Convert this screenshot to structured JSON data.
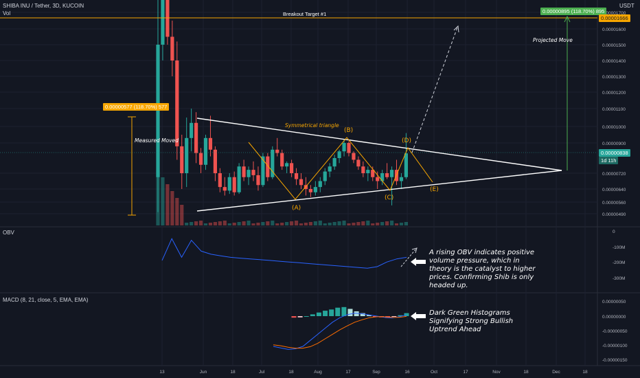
{
  "header": {
    "symbol": "SHIBA INU / Tether, 3D, KUCOIN",
    "vol_label": "Vol",
    "currency": "USDT"
  },
  "colors": {
    "background": "#131722",
    "bull": "#26a69a",
    "bear": "#ef5350",
    "target_line": "#f7a600",
    "triangle": "#ffffff",
    "obv_line": "#2962ff",
    "macd_line": "#2962ff",
    "signal_line": "#ff6d00",
    "hist_strong_green": "#26a69a",
    "hist_light_green": "#b2dfdb",
    "hist_red": "#ef5350",
    "hist_light_red": "#ffcdd2",
    "projection_arrow": "#4caf50"
  },
  "labels": {
    "breakout_target": "Breakout Target #1",
    "projected_move": "Projected Move",
    "measured_moved": "Measured Moved",
    "symmetrical_triangle": "Symmetrical triangle",
    "wave_b": "(B)",
    "wave_d": "(D)",
    "wave_a": "(A)",
    "wave_c": "(C)",
    "wave_e": "(E)",
    "measure_tag": "0.00000577 (118.70%) 577",
    "projection_tag": "0.00000895 (118.70%) 895",
    "target_price_tag": "0.00001666",
    "last_price_tag": "0.00000838",
    "countdown_tag": "1d 11h"
  },
  "obv_panel": {
    "title": "OBV",
    "annotation": [
      "A rising OBV indicates positive",
      "volume pressure, which in",
      "theory is the catalyst to higher",
      "prices. Confirming Shib is only",
      "headed up."
    ]
  },
  "macd_panel": {
    "title": "MACD (8, 21, close, 5, EMA, EMA)",
    "annotation": [
      "Dark Green Histograms",
      "Signifying Strong Bullish",
      "Uptrend Ahead"
    ]
  },
  "chart_data": [
    {
      "type": "candlestick",
      "title": "SHIBA INU / Tether, 3D, KUCOIN",
      "x_ticks": [
        "13",
        "Jun",
        "18",
        "Jul",
        "18",
        "Aug",
        "17",
        "Sep",
        "16",
        "Oct",
        "17",
        "Nov",
        "18",
        "Dec",
        "18"
      ],
      "y_ticks": [
        "0.00001700",
        "0.00001600",
        "0.00001500",
        "0.00001400",
        "0.00001300",
        "0.00001200",
        "0.00001100",
        "0.00001000",
        "0.00000900",
        "0.00000720",
        "0.00000640",
        "0.00000560",
        "0.00000490"
      ],
      "candles": [
        {
          "o": 7e-06,
          "h": 1.8e-05,
          "l": 5e-06,
          "c": 1.5e-05
        },
        {
          "o": 1.5e-05,
          "h": 1.8e-05,
          "l": 1.4e-05,
          "c": 1.8e-05
        },
        {
          "o": 1.8e-05,
          "h": 1.8e-05,
          "l": 1.5e-05,
          "c": 1.55e-05
        },
        {
          "o": 1.55e-05,
          "h": 1.65e-05,
          "l": 1.3e-05,
          "c": 1.4e-05
        },
        {
          "o": 1.4e-05,
          "h": 1.52e-05,
          "l": 8e-06,
          "c": 8.8e-06
        },
        {
          "o": 8.8e-06,
          "h": 9.5e-06,
          "l": 6.4e-06,
          "c": 7.2e-06
        },
        {
          "o": 7.2e-06,
          "h": 1.05e-05,
          "l": 6.5e-06,
          "c": 9.3e-06
        },
        {
          "o": 9.3e-06,
          "h": 1.1e-05,
          "l": 8.5e-06,
          "c": 1.02e-05
        },
        {
          "o": 1.02e-05,
          "h": 1.08e-05,
          "l": 7.8e-06,
          "c": 8.4e-06
        },
        {
          "o": 8.4e-06,
          "h": 8.7e-06,
          "l": 7.2e-06,
          "c": 7.7e-06
        },
        {
          "o": 7.7e-06,
          "h": 9.5e-06,
          "l": 7.4e-06,
          "c": 9.3e-06
        },
        {
          "o": 9.3e-06,
          "h": 1.06e-05,
          "l": 8.2e-06,
          "c": 8.6e-06
        },
        {
          "o": 8.6e-06,
          "h": 8.8e-06,
          "l": 6.8e-06,
          "c": 7.2e-06
        },
        {
          "o": 7.2e-06,
          "h": 7.5e-06,
          "l": 6.2e-06,
          "c": 6.5e-06
        },
        {
          "o": 6.5e-06,
          "h": 7e-06,
          "l": 6e-06,
          "c": 6.3e-06
        },
        {
          "o": 6.3e-06,
          "h": 7.2e-06,
          "l": 6.1e-06,
          "c": 7e-06
        },
        {
          "o": 7e-06,
          "h": 7.3e-06,
          "l": 6e-06,
          "c": 6.2e-06
        },
        {
          "o": 6.2e-06,
          "h": 7.8e-06,
          "l": 6.1e-06,
          "c": 7.6e-06
        },
        {
          "o": 7.6e-06,
          "h": 8e-06,
          "l": 6.8e-06,
          "c": 7e-06
        },
        {
          "o": 7e-06,
          "h": 7.6e-06,
          "l": 6.6e-06,
          "c": 7.4e-06
        },
        {
          "o": 7.4e-06,
          "h": 7.9e-06,
          "l": 6.8e-06,
          "c": 7.1e-06
        },
        {
          "o": 7.1e-06,
          "h": 7.6e-06,
          "l": 6.3e-06,
          "c": 6.6e-06
        },
        {
          "o": 6.6e-06,
          "h": 8.4e-06,
          "l": 6.5e-06,
          "c": 8.2e-06
        },
        {
          "o": 8.2e-06,
          "h": 8.4e-06,
          "l": 6.8e-06,
          "c": 7e-06
        },
        {
          "o": 7e-06,
          "h": 8.8e-06,
          "l": 6.9e-06,
          "c": 8.6e-06
        },
        {
          "o": 8.6e-06,
          "h": 9.3e-06,
          "l": 8.2e-06,
          "c": 8.4e-06
        },
        {
          "o": 8.4e-06,
          "h": 8.6e-06,
          "l": 7.4e-06,
          "c": 7.6e-06
        },
        {
          "o": 7.6e-06,
          "h": 7.9e-06,
          "l": 7.2e-06,
          "c": 7.8e-06
        },
        {
          "o": 7.8e-06,
          "h": 8e-06,
          "l": 7e-06,
          "c": 7.2e-06
        },
        {
          "o": 7.2e-06,
          "h": 7.5e-06,
          "l": 6.6e-06,
          "c": 6.9e-06
        },
        {
          "o": 6.9e-06,
          "h": 7.2e-06,
          "l": 6.4e-06,
          "c": 6.6e-06
        },
        {
          "o": 6.6e-06,
          "h": 7e-06,
          "l": 6e-06,
          "c": 6.4e-06
        },
        {
          "o": 6.4e-06,
          "h": 6.6e-06,
          "l": 5.9e-06,
          "c": 6.2e-06
        },
        {
          "o": 6.2e-06,
          "h": 6.8e-06,
          "l": 6e-06,
          "c": 6.5e-06
        },
        {
          "o": 6.5e-06,
          "h": 7e-06,
          "l": 6.2e-06,
          "c": 6.8e-06
        },
        {
          "o": 6.8e-06,
          "h": 7.5e-06,
          "l": 6.6e-06,
          "c": 7.3e-06
        },
        {
          "o": 7.3e-06,
          "h": 7.8e-06,
          "l": 7e-06,
          "c": 7.6e-06
        },
        {
          "o": 7.6e-06,
          "h": 8.3e-06,
          "l": 7.4e-06,
          "c": 8.1e-06
        },
        {
          "o": 8.1e-06,
          "h": 8.6e-06,
          "l": 7.8e-06,
          "c": 8.5e-06
        },
        {
          "o": 8.5e-06,
          "h": 9.2e-06,
          "l": 8.2e-06,
          "c": 9e-06
        },
        {
          "o": 9e-06,
          "h": 9.1e-06,
          "l": 8.2e-06,
          "c": 8.4e-06
        },
        {
          "o": 8.4e-06,
          "h": 8.5e-06,
          "l": 7.8e-06,
          "c": 8e-06
        },
        {
          "o": 8e-06,
          "h": 8.2e-06,
          "l": 7.4e-06,
          "c": 7.6e-06
        },
        {
          "o": 7.6e-06,
          "h": 7.9e-06,
          "l": 7e-06,
          "c": 7.2e-06
        },
        {
          "o": 7.2e-06,
          "h": 7.6e-06,
          "l": 6.8e-06,
          "c": 7.4e-06
        },
        {
          "o": 7.4e-06,
          "h": 7.6e-06,
          "l": 6.8e-06,
          "c": 7e-06
        },
        {
          "o": 7e-06,
          "h": 7.3e-06,
          "l": 6.4e-06,
          "c": 6.8e-06
        },
        {
          "o": 6.8e-06,
          "h": 7.4e-06,
          "l": 6.6e-06,
          "c": 7.2e-06
        },
        {
          "o": 7.2e-06,
          "h": 7.8e-06,
          "l": 6.9e-06,
          "c": 7e-06
        },
        {
          "o": 7e-06,
          "h": 7.6e-06,
          "l": 5.4e-06,
          "c": 7.4e-06
        },
        {
          "o": 7.4e-06,
          "h": 8e-06,
          "l": 6.6e-06,
          "c": 6.8e-06
        },
        {
          "o": 6.8e-06,
          "h": 7.2e-06,
          "l": 6.4e-06,
          "c": 7e-06
        },
        {
          "o": 7e-06,
          "h": 9.6e-06,
          "l": 6.9e-06,
          "c": 8.38e-06
        }
      ]
    },
    {
      "type": "line",
      "title": "OBV",
      "y_ticks": [
        "0",
        "-100M",
        "-200M",
        "-300M"
      ],
      "ylim": [
        -350000000,
        50000000
      ],
      "values": [
        -190000000,
        -50000000,
        -170000000,
        -60000000,
        -130000000,
        -150000000,
        -160000000,
        -170000000,
        -175000000,
        -180000000,
        -185000000,
        -190000000,
        -195000000,
        -200000000,
        -205000000,
        -210000000,
        -215000000,
        -220000000,
        -225000000,
        -230000000,
        -235000000,
        -240000000,
        -230000000,
        -200000000,
        -180000000,
        -170000000
      ]
    },
    {
      "type": "line",
      "title": "MACD (8, 21, close, 5, EMA, EMA)",
      "y_ticks": [
        "0.00000050",
        "0.00000000",
        "-0.00000050",
        "-0.00000100",
        "-0.00000150"
      ],
      "ylim": [
        -1.75e-06,
        7.5e-07
      ],
      "macd": [
        -1e-06,
        -1.05e-06,
        -1.1e-06,
        -1.08e-06,
        -1e-06,
        -8e-07,
        -6e-07,
        -4e-07,
        -2e-07,
        -5e-08,
        5e-08,
        1e-07,
        8e-08,
        4e-08,
        0.0,
        -4e-08,
        -6e-08,
        -2e-08,
        4e-08
      ],
      "signal": [
        -9.5e-07,
        -9.8e-07,
        -1.03e-06,
        -1.06e-06,
        -1.06e-06,
        -1.01e-06,
        -9e-07,
        -7.5e-07,
        -6e-07,
        -4.5e-07,
        -3.2e-07,
        -2e-07,
        -1.2e-07,
        -5e-08,
        -2e-08,
        -2e-08,
        -4e-08,
        -4e-08,
        -1e-08
      ],
      "histogram": [
        -5e-08,
        -4e-08,
        0.0,
        6e-08,
        1.2e-07,
        1.8e-07,
        2.2e-07,
        2.8e-07,
        3e-07,
        2.4e-07,
        1.6e-07,
        1e-07,
        4e-08,
        -2e-08,
        -4e-08,
        -6e-08,
        -2e-08,
        3e-08,
        1e-07
      ]
    }
  ]
}
